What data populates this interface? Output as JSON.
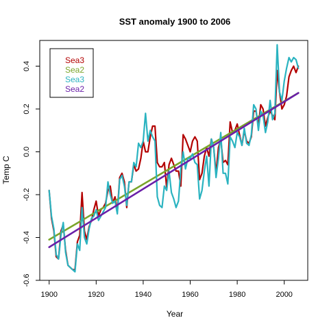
{
  "chart_data": {
    "type": "line",
    "title": "SST anomaly  1900  to  2006",
    "xlabel": "Year",
    "ylabel": "Temp C",
    "xlim": [
      1896,
      2010
    ],
    "ylim": [
      -0.6,
      0.52
    ],
    "xticks": [
      1900,
      1920,
      1940,
      1960,
      1980,
      2000
    ],
    "yticks": [
      -0.6,
      -0.4,
      -0.2,
      0.0,
      0.2,
      0.4
    ],
    "ytick_labels": [
      "-0.6",
      "-0.4",
      "-0.2",
      "0.0",
      "0.2",
      "0.4"
    ],
    "grid": false,
    "legend_position": "top-left",
    "series": [
      {
        "name": "Sea3",
        "kind": "line",
        "color": "#b30000",
        "x": [
          1900,
          1901,
          1902,
          1903,
          1904,
          1905,
          1906,
          1907,
          1908,
          1909,
          1910,
          1911,
          1912,
          1913,
          1914,
          1915,
          1916,
          1917,
          1918,
          1919,
          1920,
          1921,
          1922,
          1923,
          1924,
          1925,
          1926,
          1927,
          1928,
          1929,
          1930,
          1931,
          1932,
          1933,
          1934,
          1935,
          1936,
          1937,
          1938,
          1939,
          1940,
          1941,
          1942,
          1943,
          1944,
          1945,
          1946,
          1947,
          1948,
          1949,
          1950,
          1951,
          1952,
          1953,
          1954,
          1955,
          1956,
          1957,
          1958,
          1959,
          1960,
          1961,
          1962,
          1963,
          1964,
          1965,
          1966,
          1967,
          1968,
          1969,
          1970,
          1971,
          1972,
          1973,
          1974,
          1975,
          1976,
          1977,
          1978,
          1979,
          1980,
          1981,
          1982,
          1983,
          1984,
          1985,
          1986,
          1987,
          1988,
          1989,
          1990,
          1991,
          1992,
          1993,
          1994,
          1995,
          1996,
          1997,
          1998,
          1999,
          2000,
          2001,
          2002,
          2003,
          2004,
          2005,
          2006
        ],
        "y": [
          -0.18,
          -0.31,
          -0.37,
          -0.49,
          -0.5,
          -0.37,
          -0.34,
          -0.46,
          -0.53,
          -0.54,
          -0.55,
          -0.55,
          -0.42,
          -0.39,
          -0.19,
          -0.37,
          -0.41,
          -0.35,
          -0.32,
          -0.27,
          -0.23,
          -0.3,
          -0.27,
          -0.26,
          -0.24,
          -0.18,
          -0.16,
          -0.24,
          -0.21,
          -0.28,
          -0.12,
          -0.1,
          -0.14,
          -0.26,
          -0.14,
          -0.14,
          -0.06,
          -0.09,
          -0.08,
          -0.03,
          0.05,
          0.0,
          0.0,
          0.07,
          0.12,
          0.12,
          -0.05,
          -0.07,
          -0.07,
          -0.05,
          -0.17,
          -0.06,
          -0.03,
          -0.06,
          -0.09,
          -0.09,
          -0.16,
          0.08,
          0.06,
          0.03,
          0.0,
          0.05,
          0.07,
          0.05,
          -0.13,
          -0.1,
          -0.02,
          0.02,
          -0.02,
          0.06,
          0.02,
          -0.1,
          0.02,
          0.06,
          -0.05,
          -0.04,
          -0.06,
          0.14,
          0.09,
          0.1,
          0.13,
          0.08,
          0.03,
          0.1,
          0.05,
          0.04,
          0.07,
          0.19,
          0.19,
          0.12,
          0.22,
          0.2,
          0.12,
          0.16,
          0.19,
          0.17,
          0.15,
          0.38,
          0.28,
          0.2,
          0.22,
          0.26,
          0.35,
          0.38,
          0.4,
          0.37,
          0.4
        ]
      },
      {
        "name": "Sea2",
        "kind": "trend",
        "color": "#7aa52a",
        "x": [
          1900,
          2006
        ],
        "y": [
          -0.41,
          0.275
        ]
      },
      {
        "name": "Sea3",
        "kind": "line",
        "color": "#2ab3c0",
        "x": [
          1900,
          1901,
          1902,
          1903,
          1904,
          1905,
          1906,
          1907,
          1908,
          1909,
          1910,
          1911,
          1912,
          1913,
          1914,
          1915,
          1916,
          1917,
          1918,
          1919,
          1920,
          1921,
          1922,
          1923,
          1924,
          1925,
          1926,
          1927,
          1928,
          1929,
          1930,
          1931,
          1932,
          1933,
          1934,
          1935,
          1936,
          1937,
          1938,
          1939,
          1940,
          1941,
          1942,
          1943,
          1944,
          1945,
          1946,
          1947,
          1948,
          1949,
          1950,
          1951,
          1952,
          1953,
          1954,
          1955,
          1956,
          1957,
          1958,
          1959,
          1960,
          1961,
          1962,
          1963,
          1964,
          1965,
          1966,
          1967,
          1968,
          1969,
          1970,
          1971,
          1972,
          1973,
          1974,
          1975,
          1976,
          1977,
          1978,
          1979,
          1980,
          1981,
          1982,
          1983,
          1984,
          1985,
          1986,
          1987,
          1988,
          1989,
          1990,
          1991,
          1992,
          1993,
          1994,
          1995,
          1996,
          1997,
          1998,
          1999,
          2000,
          2001,
          2002,
          2003,
          2004,
          2005,
          2006
        ],
        "y": [
          -0.18,
          -0.3,
          -0.36,
          -0.48,
          -0.5,
          -0.39,
          -0.33,
          -0.47,
          -0.53,
          -0.54,
          -0.55,
          -0.56,
          -0.43,
          -0.46,
          -0.26,
          -0.4,
          -0.43,
          -0.36,
          -0.31,
          -0.3,
          -0.27,
          -0.32,
          -0.3,
          -0.28,
          -0.26,
          -0.14,
          -0.2,
          -0.24,
          -0.23,
          -0.29,
          -0.13,
          -0.11,
          -0.16,
          -0.25,
          -0.14,
          -0.14,
          -0.05,
          -0.07,
          0.04,
          0.02,
          0.05,
          0.18,
          0.05,
          0.1,
          0.07,
          0.05,
          -0.21,
          -0.25,
          -0.26,
          -0.16,
          -0.18,
          -0.09,
          -0.19,
          -0.22,
          -0.26,
          -0.23,
          -0.08,
          0.0,
          -0.08,
          -0.03,
          -0.03,
          -0.01,
          -0.05,
          -0.06,
          -0.22,
          -0.18,
          -0.09,
          -0.02,
          -0.16,
          0.06,
          0.02,
          -0.12,
          -0.03,
          0.09,
          -0.1,
          -0.1,
          -0.15,
          0.07,
          0.05,
          0.02,
          0.09,
          0.07,
          0.03,
          0.11,
          0.04,
          0.03,
          0.08,
          0.22,
          0.2,
          0.1,
          0.19,
          0.17,
          0.09,
          0.14,
          0.24,
          0.15,
          0.18,
          0.5,
          0.28,
          0.24,
          0.33,
          0.39,
          0.44,
          0.42,
          0.44,
          0.43,
          0.39
        ]
      },
      {
        "name": "Sea2",
        "kind": "trend",
        "color": "#6a1fa8",
        "x": [
          1900,
          2006
        ],
        "y": [
          -0.445,
          0.275
        ]
      }
    ]
  }
}
